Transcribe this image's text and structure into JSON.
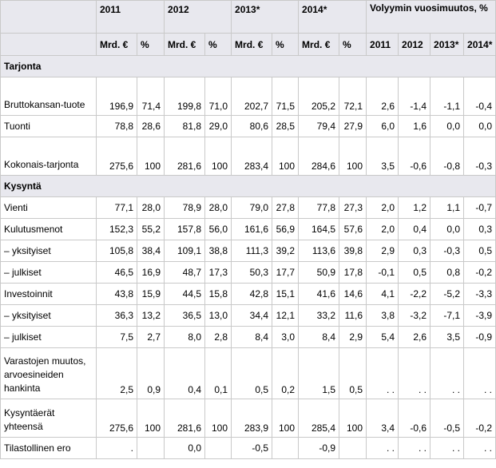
{
  "header": {
    "years": [
      "2011",
      "2012",
      "2013*",
      "2014*"
    ],
    "volume_title": "Volyymin vuosimuutos, %",
    "unit_mrd": "Mrd. €",
    "unit_pct": "%",
    "volume_years": [
      "2011",
      "2012",
      "2013*",
      "2014*"
    ]
  },
  "sections": [
    {
      "title": "Tarjonta",
      "rows": [
        {
          "label": "Bruttokansan-tuote",
          "cells": [
            "196,9",
            "71,4",
            "199,8",
            "71,0",
            "202,7",
            "71,5",
            "205,2",
            "72,1",
            "2,6",
            "-1,4",
            "-1,1",
            "-0,4"
          ]
        },
        {
          "label": "Tuonti",
          "cells": [
            "78,8",
            "28,6",
            "81,8",
            "29,0",
            "80,6",
            "28,5",
            "79,4",
            "27,9",
            "6,0",
            "1,6",
            "0,0",
            "0,0"
          ]
        },
        {
          "label": "Kokonais-tarjonta",
          "cells": [
            "275,6",
            "100",
            "281,6",
            "100",
            "283,4",
            "100",
            "284,6",
            "100",
            "3,5",
            "-0,6",
            "-0,8",
            "-0,3"
          ]
        }
      ]
    },
    {
      "title": "Kysyntä",
      "rows": [
        {
          "label": "Vienti",
          "cells": [
            "77,1",
            "28,0",
            "78,9",
            "28,0",
            "79,0",
            "27,8",
            "77,8",
            "27,3",
            "2,0",
            "1,2",
            "1,1",
            "-0,7"
          ]
        },
        {
          "label": "Kulutusmenot",
          "cells": [
            "152,3",
            "55,2",
            "157,8",
            "56,0",
            "161,6",
            "56,9",
            "164,5",
            "57,6",
            "2,0",
            "0,4",
            "0,0",
            "0,3"
          ]
        },
        {
          "label": "– yksityiset",
          "cells": [
            "105,8",
            "38,4",
            "109,1",
            "38,8",
            "111,3",
            "39,2",
            "113,6",
            "39,8",
            "2,9",
            "0,3",
            "-0,3",
            "0,5"
          ]
        },
        {
          "label": "– julkiset",
          "cells": [
            "46,5",
            "16,9",
            "48,7",
            "17,3",
            "50,3",
            "17,7",
            "50,9",
            "17,8",
            "-0,1",
            "0,5",
            "0,8",
            "-0,2"
          ]
        },
        {
          "label": "Investoinnit",
          "cells": [
            "43,8",
            "15,9",
            "44,5",
            "15,8",
            "42,8",
            "15,1",
            "41,6",
            "14,6",
            "4,1",
            "-2,2",
            "-5,2",
            "-3,3"
          ]
        },
        {
          "label": "– yksityiset",
          "cells": [
            "36,3",
            "13,2",
            "36,5",
            "13,0",
            "34,4",
            "12,1",
            "33,2",
            "11,6",
            "3,8",
            "-3,2",
            "-7,1",
            "-3,9"
          ]
        },
        {
          "label": "– julkiset",
          "cells": [
            "7,5",
            "2,7",
            "8,0",
            "2,8",
            "8,4",
            "3,0",
            "8,4",
            "2,9",
            "5,4",
            "2,6",
            "3,5",
            "-0,9"
          ]
        },
        {
          "label": "Varastojen muutos, arvoesineiden hankinta",
          "cells": [
            "2,5",
            "0,9",
            "0,4",
            "0,1",
            "0,5",
            "0,2",
            "1,5",
            "0,5",
            ". .",
            ". .",
            ". .",
            ". ."
          ]
        },
        {
          "label": "Kysyntäerät yhteensä",
          "cells": [
            "275,6",
            "100",
            "281,6",
            "100",
            "283,9",
            "100",
            "285,4",
            "100",
            "3,4",
            "-0,6",
            "-0,5",
            "-0,2"
          ]
        },
        {
          "label": "Tilastollinen ero",
          "cells": [
            ".",
            "",
            "0,0",
            "",
            "-0,5",
            "",
            "-0,9",
            "",
            ". .",
            ". .",
            ". .",
            ". ."
          ]
        }
      ]
    }
  ]
}
